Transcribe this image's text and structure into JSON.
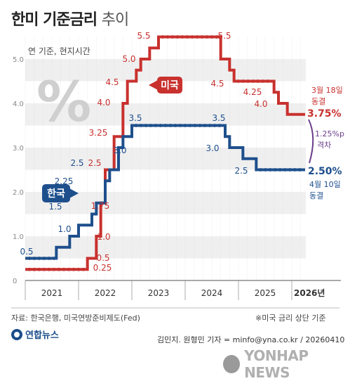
{
  "header": {
    "title_bold": "한미 기준금리",
    "title_light": "추이"
  },
  "unit_note": "연 기준, 현지시간",
  "big_symbol": "%",
  "colors": {
    "us": "#c8312e",
    "korea": "#1e4f8c",
    "gap": "#6b3d8c",
    "grid": "#e6e6e6"
  },
  "chart_data": {
    "type": "line",
    "step": true,
    "title": "한미 기준금리 추이",
    "ylim": [
      0,
      5.5
    ],
    "yticks": [
      "0",
      "1.0",
      "2.0",
      "3.0",
      "4.0",
      "5.0"
    ],
    "xticks": [
      "2021",
      "2022",
      "2023",
      "2024",
      "2025",
      "2026년"
    ],
    "series": [
      {
        "name": "미국",
        "points": [
          {
            "x": "2021-01",
            "y": 0.25
          },
          {
            "x": "2022-03",
            "y": 0.5
          },
          {
            "x": "2022-05",
            "y": 1.0
          },
          {
            "x": "2022-06",
            "y": 1.75
          },
          {
            "x": "2022-07",
            "y": 2.5
          },
          {
            "x": "2022-09",
            "y": 3.25
          },
          {
            "x": "2022-11",
            "y": 4.0
          },
          {
            "x": "2022-12",
            "y": 4.5
          },
          {
            "x": "2023-02",
            "y": 4.75
          },
          {
            "x": "2023-03",
            "y": 5.0
          },
          {
            "x": "2023-05",
            "y": 5.25
          },
          {
            "x": "2023-07",
            "y": 5.5
          },
          {
            "x": "2024-09",
            "y": 5.0
          },
          {
            "x": "2024-11",
            "y": 4.75
          },
          {
            "x": "2024-12",
            "y": 4.5
          },
          {
            "x": "2025-09",
            "y": 4.25
          },
          {
            "x": "2025-10",
            "y": 4.0
          },
          {
            "x": "2025-12",
            "y": 3.75
          },
          {
            "x": "2026-04",
            "y": 3.75
          }
        ],
        "labels": [
          {
            "text": "0.25",
            "value": 0.25
          },
          {
            "text": "0.5",
            "value": 0.5
          },
          {
            "text": "1.0",
            "value": 1.0
          },
          {
            "text": "1.75",
            "value": 1.75
          },
          {
            "text": "2.5",
            "value": 2.5
          },
          {
            "text": "3.25",
            "value": 3.25
          },
          {
            "text": "4.0",
            "value": 4.0
          },
          {
            "text": "4.5",
            "value": 4.5
          },
          {
            "text": "5.0",
            "value": 5.0
          },
          {
            "text": "5.5",
            "value": 5.5
          },
          {
            "text": "5.5",
            "value": 5.5
          },
          {
            "text": "4.5",
            "value": 4.5
          },
          {
            "text": "4.25",
            "value": 4.25
          },
          {
            "text": "4.0",
            "value": 4.0
          }
        ]
      },
      {
        "name": "한국",
        "points": [
          {
            "x": "2021-01",
            "y": 0.5
          },
          {
            "x": "2021-08",
            "y": 0.75
          },
          {
            "x": "2021-11",
            "y": 1.0
          },
          {
            "x": "2022-01",
            "y": 1.25
          },
          {
            "x": "2022-04",
            "y": 1.5
          },
          {
            "x": "2022-05",
            "y": 1.75
          },
          {
            "x": "2022-07",
            "y": 2.25
          },
          {
            "x": "2022-08",
            "y": 2.5
          },
          {
            "x": "2022-10",
            "y": 3.0
          },
          {
            "x": "2022-11",
            "y": 3.25
          },
          {
            "x": "2023-01",
            "y": 3.5
          },
          {
            "x": "2024-10",
            "y": 3.25
          },
          {
            "x": "2024-11",
            "y": 3.0
          },
          {
            "x": "2025-02",
            "y": 2.75
          },
          {
            "x": "2025-05",
            "y": 2.5
          },
          {
            "x": "2026-04",
            "y": 2.5
          }
        ],
        "labels": [
          {
            "text": "0.5",
            "value": 0.5
          },
          {
            "text": "1.0",
            "value": 1.0
          },
          {
            "text": "1.5",
            "value": 1.5
          },
          {
            "text": "2.25",
            "value": 2.25
          },
          {
            "text": "2.5",
            "value": 2.5
          },
          {
            "text": "3.0",
            "value": 3.0
          },
          {
            "text": "3.5",
            "value": 3.5
          },
          {
            "text": "3.5",
            "value": 3.5
          },
          {
            "text": "3.0",
            "value": 3.0
          },
          {
            "text": "2.5",
            "value": 2.5
          }
        ]
      }
    ],
    "annotations": {
      "us_date": "3월 18일",
      "us_status": "동결",
      "us_final": "3.75%",
      "kr_date": "4월 10일",
      "kr_status": "동결",
      "kr_final": "2.50%",
      "gap_value": "1.25%p",
      "gap_label": "격차"
    }
  },
  "footer": {
    "source": "자료: 한국은행, 미국연방준비제도(Fed)",
    "note": "※미국 금리 상단 기준",
    "credit": "김민지. 원형민 기자 = minfo@yna.co.kr / 20260410",
    "logo_text": "연합뉴스",
    "wire_text": "YONHAP NEWS"
  }
}
